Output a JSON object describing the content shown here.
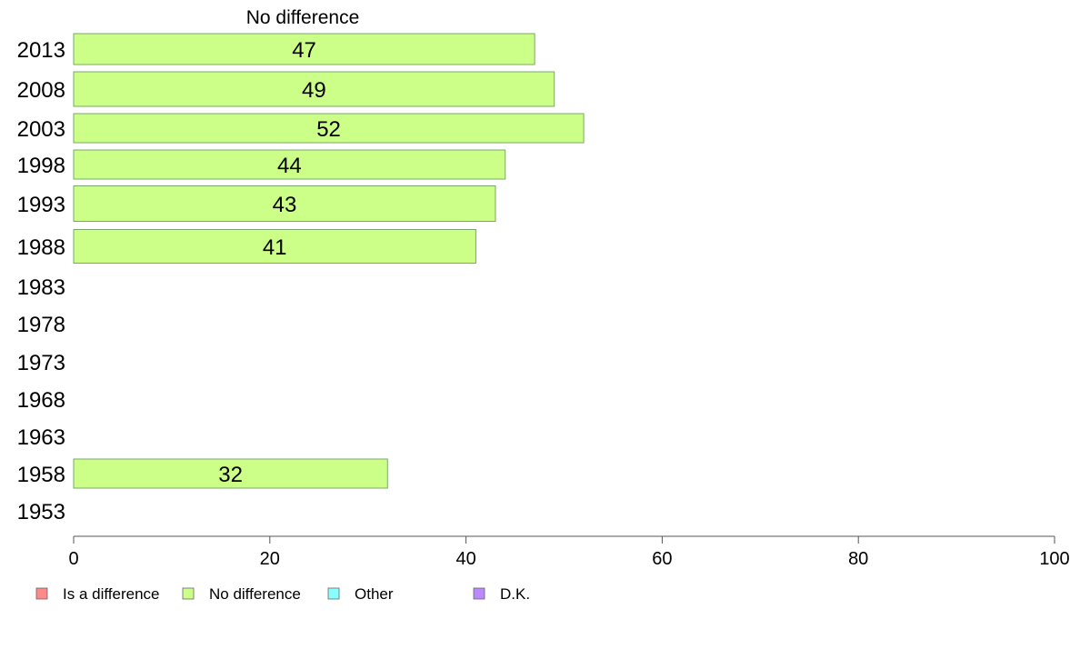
{
  "chart_data": {
    "type": "bar",
    "orientation": "horizontal",
    "panel_title": "No difference",
    "categories": [
      "2013",
      "2008",
      "2003",
      "1998",
      "1993",
      "1988",
      "1983",
      "1978",
      "1973",
      "1968",
      "1963",
      "1958",
      "1953"
    ],
    "series": [
      {
        "name": "No difference",
        "color": "#ccff88",
        "values": [
          47,
          49,
          52,
          44,
          43,
          41,
          null,
          null,
          null,
          null,
          null,
          32,
          null
        ]
      }
    ],
    "xlim": [
      0,
      100
    ],
    "xticks": [
      0,
      20,
      40,
      60,
      80,
      100
    ],
    "legend": [
      {
        "label": "Is a difference",
        "color": "#ff8888"
      },
      {
        "label": "No difference",
        "color": "#ccff88"
      },
      {
        "label": "Other",
        "color": "#88ffff"
      },
      {
        "label": "D.K.",
        "color": "#bb88ff"
      }
    ],
    "legend_position": "bottom-left",
    "grid": false
  }
}
